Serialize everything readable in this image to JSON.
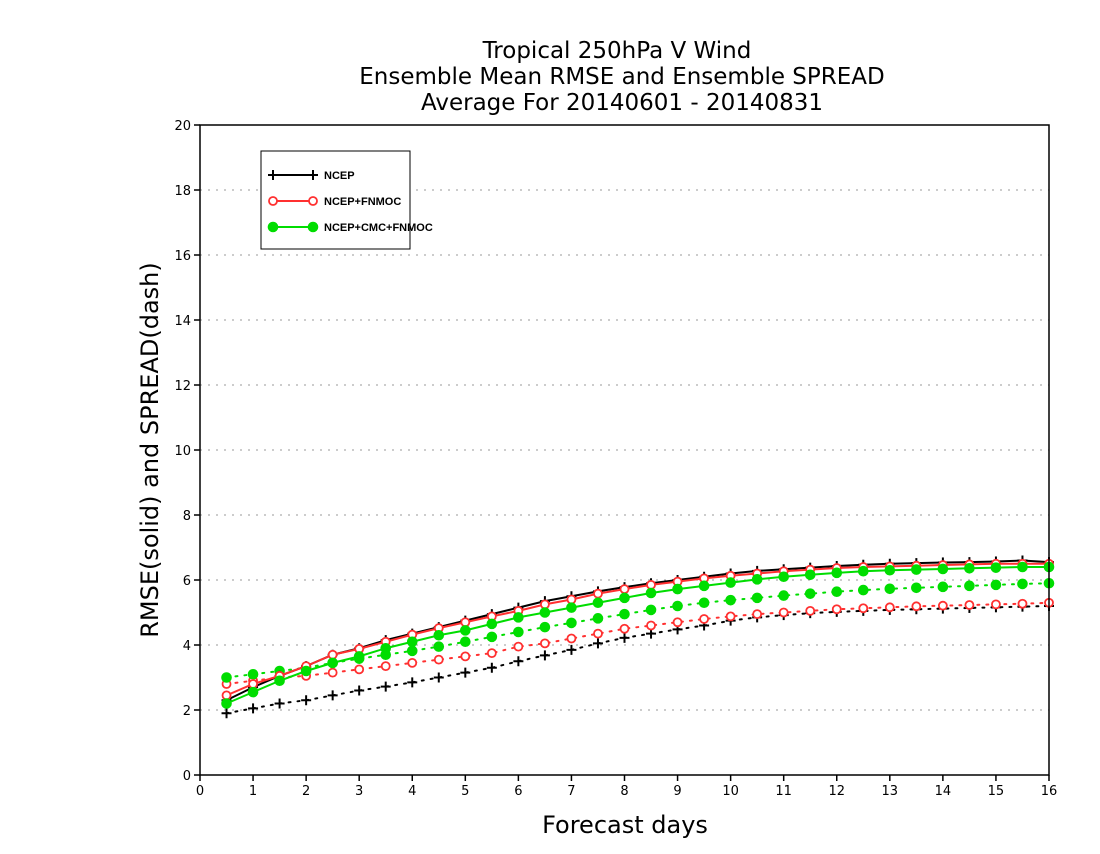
{
  "chart_data": {
    "type": "line",
    "title_lines": [
      "Tropical 250hPa V Wind",
      "Ensemble Mean RMSE and Ensemble SPREAD",
      "Average For 20140601 - 20140831"
    ],
    "xlabel": "Forecast days",
    "ylabel": "RMSE(solid) and SPREAD(dash)",
    "xlim": [
      0,
      16
    ],
    "ylim": [
      0,
      20
    ],
    "xticks": [
      0,
      1,
      2,
      3,
      4,
      5,
      6,
      7,
      8,
      9,
      10,
      11,
      12,
      13,
      14,
      15,
      16
    ],
    "yticks": [
      0,
      2,
      4,
      6,
      8,
      10,
      12,
      14,
      16,
      18,
      20
    ],
    "grid": "horizontal dotted",
    "legend_position": "top-left",
    "x": [
      0.5,
      1,
      1.5,
      2,
      2.5,
      3,
      3.5,
      4,
      4.5,
      5,
      5.5,
      6,
      6.5,
      7,
      7.5,
      8,
      8.5,
      9,
      9.5,
      10,
      10.5,
      11,
      11.5,
      12,
      12.5,
      13,
      13.5,
      14,
      14.5,
      15,
      15.5,
      16
    ],
    "series": [
      {
        "name": "NCEP",
        "color": "#000000",
        "marker": "plus",
        "rmse": [
          2.3,
          2.7,
          3.05,
          3.35,
          3.7,
          3.9,
          4.15,
          4.35,
          4.55,
          4.75,
          4.95,
          5.15,
          5.35,
          5.5,
          5.65,
          5.78,
          5.9,
          6.0,
          6.1,
          6.2,
          6.28,
          6.33,
          6.38,
          6.43,
          6.47,
          6.5,
          6.52,
          6.54,
          6.55,
          6.57,
          6.6,
          6.55
        ],
        "spread": [
          1.9,
          2.05,
          2.2,
          2.3,
          2.45,
          2.6,
          2.72,
          2.85,
          3.0,
          3.15,
          3.3,
          3.5,
          3.68,
          3.85,
          4.05,
          4.22,
          4.35,
          4.48,
          4.6,
          4.75,
          4.85,
          4.92,
          4.98,
          5.02,
          5.05,
          5.08,
          5.1,
          5.12,
          5.14,
          5.16,
          5.18,
          5.2
        ]
      },
      {
        "name": "NCEP+FNMOC",
        "color": "#ff3030",
        "marker": "open-circle",
        "rmse": [
          2.45,
          2.8,
          3.05,
          3.35,
          3.7,
          3.88,
          4.1,
          4.32,
          4.52,
          4.7,
          4.88,
          5.05,
          5.25,
          5.4,
          5.58,
          5.72,
          5.85,
          5.95,
          6.05,
          6.13,
          6.2,
          6.27,
          6.32,
          6.37,
          6.4,
          6.42,
          6.44,
          6.46,
          6.48,
          6.5,
          6.5,
          6.5
        ],
        "spread": [
          2.8,
          2.9,
          3.0,
          3.05,
          3.15,
          3.25,
          3.35,
          3.45,
          3.55,
          3.65,
          3.75,
          3.95,
          4.05,
          4.2,
          4.35,
          4.5,
          4.6,
          4.7,
          4.8,
          4.88,
          4.95,
          5.0,
          5.05,
          5.1,
          5.13,
          5.16,
          5.19,
          5.21,
          5.23,
          5.25,
          5.27,
          5.3
        ]
      },
      {
        "name": "NCEP+CMC+FNMOC",
        "color": "#00dd00",
        "marker": "filled-circle",
        "rmse": [
          2.2,
          2.55,
          2.9,
          3.2,
          3.45,
          3.65,
          3.9,
          4.1,
          4.3,
          4.45,
          4.65,
          4.85,
          5.0,
          5.15,
          5.3,
          5.45,
          5.6,
          5.72,
          5.82,
          5.92,
          6.02,
          6.1,
          6.16,
          6.22,
          6.27,
          6.3,
          6.32,
          6.34,
          6.36,
          6.38,
          6.4,
          6.4
        ],
        "spread": [
          3.0,
          3.1,
          3.2,
          3.3,
          3.45,
          3.58,
          3.7,
          3.82,
          3.95,
          4.1,
          4.25,
          4.4,
          4.55,
          4.68,
          4.82,
          4.95,
          5.08,
          5.2,
          5.3,
          5.38,
          5.45,
          5.52,
          5.58,
          5.64,
          5.69,
          5.73,
          5.76,
          5.79,
          5.82,
          5.85,
          5.88,
          5.9
        ]
      }
    ]
  }
}
